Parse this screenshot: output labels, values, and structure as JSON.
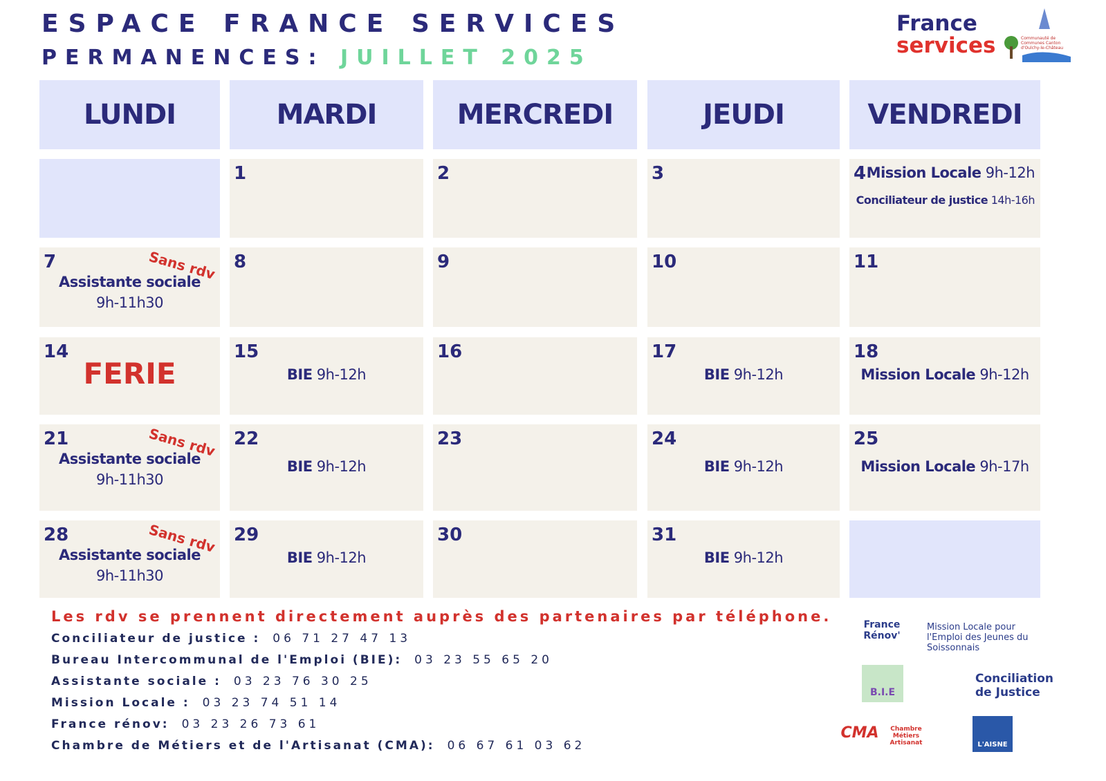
{
  "header": {
    "title": "ESPACE FRANCE SERVICES",
    "subtitle": "PERMANENCES:",
    "month": "JUILLET 2025",
    "logo": {
      "line1": "France",
      "line2": "services",
      "community": "Communauté de Communes Canton d'Oulchy-le-Château"
    }
  },
  "days": [
    "LUNDI",
    "MARDI",
    "MERCREDI",
    "JEUDI",
    "VENDREDI"
  ],
  "weeks": [
    [
      null,
      {
        "day": "1"
      },
      {
        "day": "2"
      },
      {
        "day": "3"
      },
      {
        "day": "4",
        "events": [
          {
            "name": "Mission Locale",
            "time": "9h-12h"
          },
          {
            "name": "Conciliateur de justice",
            "time": "14h-16h"
          }
        ]
      }
    ],
    [
      {
        "day": "7",
        "note": "Sans rdv",
        "events": [
          {
            "name": "Assistante sociale",
            "time": "9h-11h30"
          }
        ]
      },
      {
        "day": "8"
      },
      {
        "day": "9"
      },
      {
        "day": "10"
      },
      {
        "day": "11"
      }
    ],
    [
      {
        "day": "14",
        "holiday": "FERIE"
      },
      {
        "day": "15",
        "events": [
          {
            "name": "BIE",
            "time": "9h-12h"
          }
        ]
      },
      {
        "day": "16"
      },
      {
        "day": "17",
        "events": [
          {
            "name": "BIE",
            "time": "9h-12h"
          }
        ]
      },
      {
        "day": "18",
        "events": [
          {
            "name": "Mission Locale",
            "time": "9h-12h"
          }
        ]
      }
    ],
    [
      {
        "day": "21",
        "note": "Sans rdv",
        "events": [
          {
            "name": "Assistante sociale",
            "time": "9h-11h30"
          }
        ]
      },
      {
        "day": "22",
        "events": [
          {
            "name": "BIE",
            "time": "9h-12h"
          }
        ]
      },
      {
        "day": "23"
      },
      {
        "day": "24",
        "events": [
          {
            "name": "BIE",
            "time": "9h-12h"
          }
        ]
      },
      {
        "day": "25",
        "events": [
          {
            "name": "Mission Locale",
            "time": "9h-17h"
          }
        ]
      }
    ],
    [
      {
        "day": "28",
        "note": "Sans rdv",
        "events": [
          {
            "name": "Assistante sociale",
            "time": "9h-11h30"
          }
        ]
      },
      {
        "day": "29",
        "events": [
          {
            "name": "BIE",
            "time": "9h-12h"
          }
        ]
      },
      {
        "day": "30"
      },
      {
        "day": "31",
        "events": [
          {
            "name": "BIE",
            "time": "9h-12h"
          }
        ]
      },
      null
    ]
  ],
  "footer": {
    "notice": "Les rdv se prennent directement auprès des partenaires par téléphone.",
    "contacts": [
      {
        "label": "Conciliateur de justice :",
        "phone": "06 71 27 47 13"
      },
      {
        "label": "Bureau Intercommunal de l'Emploi (BIE):",
        "phone": "03 23 55 65 20"
      },
      {
        "label": "Assistante sociale :",
        "phone": "03 23 76 30 25"
      },
      {
        "label": "Mission Locale :",
        "phone": "03 23 74 51 14"
      },
      {
        "label": "France rénov:",
        "phone": "03 23 26 73 61"
      },
      {
        "label": "Chambre de Métiers et de l'Artisanat (CMA):",
        "phone": "06 67 61 03 62"
      }
    ]
  },
  "partners": [
    "France Rénov'",
    "Mission Locale pour l'Emploi des Jeunes du Soissonnais",
    "B.I.E",
    "Conciliation de Justice",
    "CMA",
    "Chambre Métiers Artisanat",
    "L'AISNE"
  ]
}
